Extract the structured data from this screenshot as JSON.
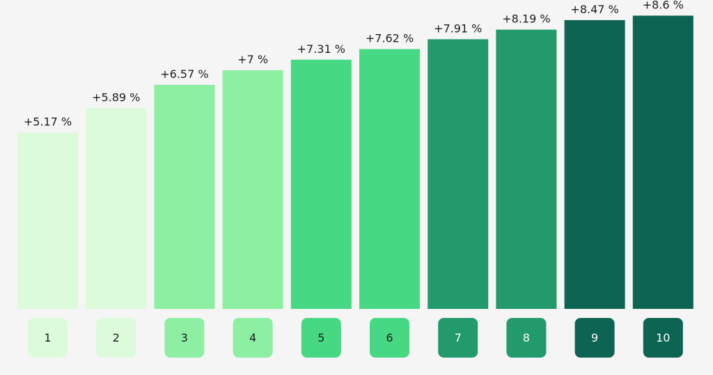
{
  "chart_data": {
    "type": "bar",
    "categories": [
      "1",
      "2",
      "3",
      "4",
      "5",
      "6",
      "7",
      "8",
      "9",
      "10"
    ],
    "values": [
      5.17,
      5.89,
      6.57,
      7,
      7.31,
      7.62,
      7.91,
      8.19,
      8.47,
      8.6
    ],
    "data_labels": [
      "+5.17 %",
      "+5.89 %",
      "+6.57 %",
      "+7 %",
      "+7.31 %",
      "+7.62 %",
      "+7.91 %",
      "+8.19 %",
      "+8.47 %",
      "+8.6 %"
    ],
    "ylim": [
      0,
      9.06
    ],
    "grid": false,
    "legend": "none",
    "colors": [
      "#dbfbdb",
      "#dbfbdb",
      "#8cefa2",
      "#8cefa2",
      "#47d884",
      "#47d884",
      "#229a6b",
      "#229a6b",
      "#0e6452",
      "#0e6452"
    ],
    "label_colors": [
      "#1d1d1f",
      "#1d1d1f",
      "#1d1d1f",
      "#1d1d1f",
      "#1d1d1f",
      "#1d1d1f",
      "#ffffff",
      "#ffffff",
      "#ffffff",
      "#ffffff"
    ]
  }
}
